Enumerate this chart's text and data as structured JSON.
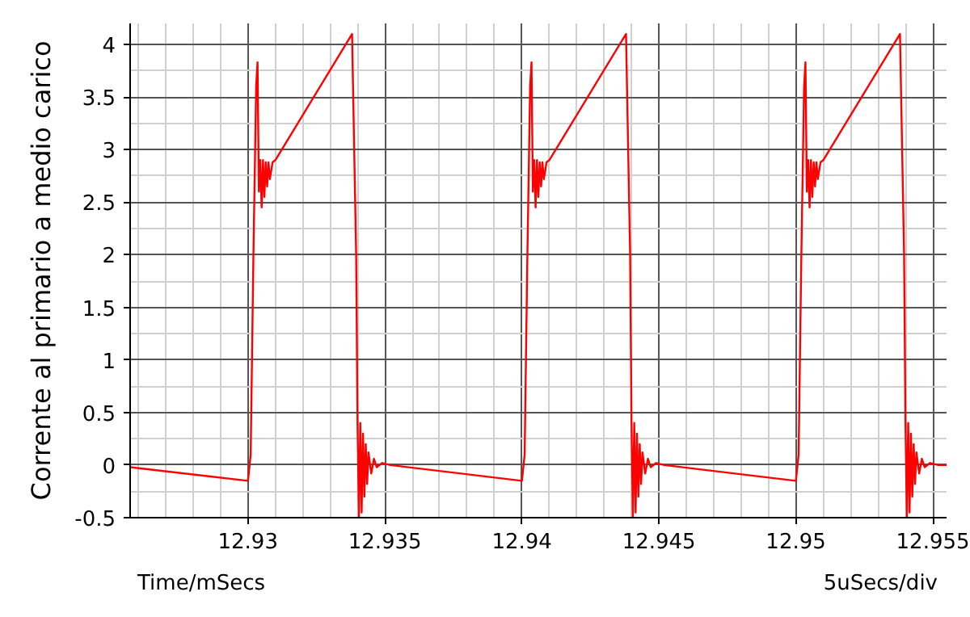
{
  "chart_data": {
    "type": "line",
    "xlabel": "Time/mSecs",
    "ylabel": "Corrente al primario a medio carico",
    "annotations": [
      "5uSecs/div"
    ],
    "x": [
      12.9257,
      12.93,
      12.9301,
      12.9302,
      12.9303,
      12.93035,
      12.9304,
      12.93045,
      12.9305,
      12.93055,
      12.9306,
      12.93065,
      12.9307,
      12.93075,
      12.9308,
      12.9309,
      12.931,
      12.9338,
      12.93395,
      12.934,
      12.93405,
      12.9341,
      12.93415,
      12.9342,
      12.93425,
      12.9343,
      12.93435,
      12.9344,
      12.9345,
      12.9346,
      12.9347,
      12.9349,
      12.9352,
      12.94,
      12.9401,
      12.9402,
      12.9403,
      12.94035,
      12.9404,
      12.94045,
      12.9405,
      12.94055,
      12.9406,
      12.94065,
      12.9407,
      12.94075,
      12.9408,
      12.9409,
      12.941,
      12.9438,
      12.94395,
      12.944,
      12.94405,
      12.9441,
      12.94415,
      12.9442,
      12.94425,
      12.9443,
      12.94435,
      12.9444,
      12.9445,
      12.9446,
      12.9447,
      12.9449,
      12.9452,
      12.95,
      12.9501,
      12.9502,
      12.9503,
      12.95035,
      12.9504,
      12.95045,
      12.9505,
      12.95055,
      12.9506,
      12.95065,
      12.9507,
      12.95075,
      12.9508,
      12.9509,
      12.951,
      12.9538,
      12.95395,
      12.954,
      12.95405,
      12.9541,
      12.95415,
      12.9542,
      12.95425,
      12.9543,
      12.95435,
      12.9544,
      12.9545,
      12.9546,
      12.9547,
      12.9549,
      12.9552,
      12.9555
    ],
    "series": [
      {
        "color": "#ff0000",
        "values": [
          -0.02,
          -0.15,
          0.1,
          2.0,
          3.6,
          3.83,
          2.6,
          2.9,
          2.45,
          2.9,
          2.55,
          2.88,
          2.65,
          2.88,
          2.72,
          2.88,
          2.9,
          4.1,
          2.0,
          0.4,
          -0.5,
          0.4,
          -0.45,
          0.3,
          -0.3,
          0.2,
          -0.18,
          0.12,
          -0.08,
          0.06,
          -0.02,
          0.02,
          0.0,
          -0.15,
          0.1,
          2.0,
          3.6,
          3.83,
          2.6,
          2.9,
          2.45,
          2.9,
          2.55,
          2.88,
          2.65,
          2.88,
          2.72,
          2.88,
          2.9,
          4.1,
          2.0,
          0.4,
          -0.5,
          0.4,
          -0.45,
          0.3,
          -0.3,
          0.2,
          -0.18,
          0.12,
          -0.08,
          0.06,
          -0.02,
          0.02,
          0.0,
          -0.15,
          0.1,
          2.0,
          3.6,
          3.83,
          2.6,
          2.9,
          2.45,
          2.9,
          2.55,
          2.88,
          2.65,
          2.88,
          2.72,
          2.88,
          2.9,
          4.1,
          2.0,
          0.4,
          -0.5,
          0.4,
          -0.45,
          0.3,
          -0.3,
          0.2,
          -0.18,
          0.12,
          -0.08,
          0.06,
          -0.02,
          0.02,
          0.0,
          0.0
        ]
      }
    ],
    "xlim": [
      12.9257,
      12.9555
    ],
    "ylim": [
      -0.5,
      4.2
    ],
    "xticks": [
      12.93,
      12.935,
      12.94,
      12.945,
      12.95,
      12.955
    ],
    "yticks": [
      -0.5,
      0,
      0.5,
      1,
      1.5,
      2,
      2.5,
      3,
      3.5,
      4
    ],
    "grid": true,
    "marker": "none",
    "line_style": "solid"
  }
}
